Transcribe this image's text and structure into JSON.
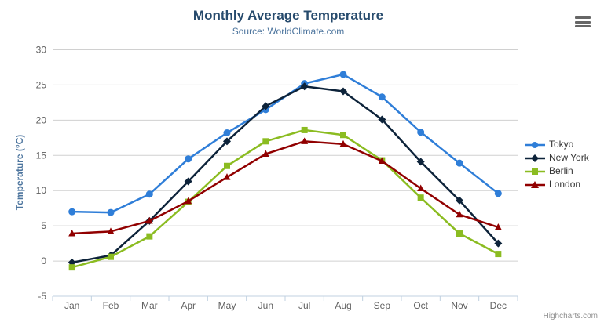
{
  "chart": {
    "title": "Monthly Average Temperature",
    "subtitle": "Source: WorldClimate.com",
    "credit": "Highcharts.com",
    "menu_icon": "hamburger-menu-icon"
  },
  "chart_data": {
    "type": "line",
    "title": "Monthly Average Temperature",
    "subtitle": "Source: WorldClimate.com",
    "xlabel": "",
    "ylabel": "Temperature (°C)",
    "ylim": [
      -5,
      30
    ],
    "ytick_interval": 5,
    "grid": true,
    "legend_position": "right",
    "categories": [
      "Jan",
      "Feb",
      "Mar",
      "Apr",
      "May",
      "Jun",
      "Jul",
      "Aug",
      "Sep",
      "Oct",
      "Nov",
      "Dec"
    ],
    "series": [
      {
        "name": "Tokyo",
        "color": "#2f7ed8",
        "marker": "circle",
        "values": [
          7.0,
          6.9,
          9.5,
          14.5,
          18.2,
          21.5,
          25.2,
          26.5,
          23.3,
          18.3,
          13.9,
          9.6
        ]
      },
      {
        "name": "New York",
        "color": "#0d233a",
        "marker": "diamond",
        "values": [
          -0.2,
          0.8,
          5.7,
          11.3,
          17.0,
          22.0,
          24.8,
          24.1,
          20.1,
          14.1,
          8.6,
          2.5
        ]
      },
      {
        "name": "Berlin",
        "color": "#8bbc21",
        "marker": "square",
        "values": [
          -0.9,
          0.6,
          3.5,
          8.4,
          13.5,
          17.0,
          18.6,
          17.9,
          14.3,
          9.0,
          3.9,
          1.0
        ]
      },
      {
        "name": "London",
        "color": "#910000",
        "marker": "triangle",
        "values": [
          3.9,
          4.2,
          5.7,
          8.5,
          11.9,
          15.2,
          17.0,
          16.6,
          14.2,
          10.3,
          6.6,
          4.8
        ]
      }
    ]
  },
  "colors": {
    "gridline": "#d0d0d0",
    "axis_line": "#c0d0e0",
    "axis_labels": "#606060",
    "legend_text": "#333333",
    "credit": "#909090",
    "menu_icon": "#666666",
    "background": "#ffffff"
  }
}
